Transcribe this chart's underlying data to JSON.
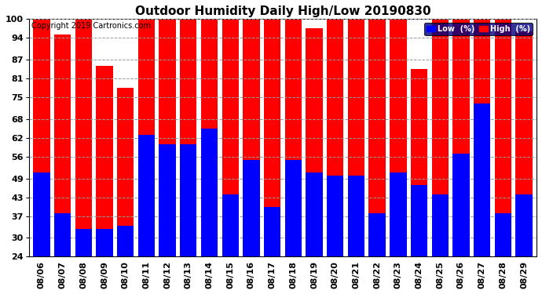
{
  "title": "Outdoor Humidity Daily High/Low 20190830",
  "copyright": "Copyright 2019 Cartronics.com",
  "dates": [
    "08/06",
    "08/07",
    "08/08",
    "08/09",
    "08/10",
    "08/11",
    "08/12",
    "08/13",
    "08/14",
    "08/15",
    "08/16",
    "08/17",
    "08/18",
    "08/19",
    "08/20",
    "08/21",
    "08/22",
    "08/23",
    "08/24",
    "08/25",
    "08/26",
    "08/27",
    "08/28",
    "08/29"
  ],
  "high": [
    100,
    95,
    100,
    85,
    78,
    100,
    100,
    100,
    100,
    100,
    100,
    100,
    100,
    97,
    100,
    100,
    100,
    100,
    84,
    100,
    100,
    100,
    100,
    96
  ],
  "low": [
    51,
    38,
    33,
    33,
    34,
    63,
    60,
    60,
    65,
    44,
    55,
    40,
    55,
    51,
    50,
    50,
    38,
    51,
    47,
    44,
    57,
    73,
    38,
    44
  ],
  "ylim_min": 24,
  "ylim_max": 100,
  "yticks": [
    24,
    30,
    37,
    43,
    49,
    56,
    62,
    68,
    75,
    81,
    87,
    94,
    100
  ],
  "high_color": "#ff0000",
  "low_color": "#0000ff",
  "bg_color": "#ffffff",
  "grid_color": "#999999",
  "title_fontsize": 11,
  "copyright_fontsize": 7,
  "tick_fontsize": 8,
  "legend_low_label": "Low  (%)",
  "legend_high_label": "High  (%)",
  "legend_bg": "#000080",
  "legend_text_color": "#ffffff"
}
